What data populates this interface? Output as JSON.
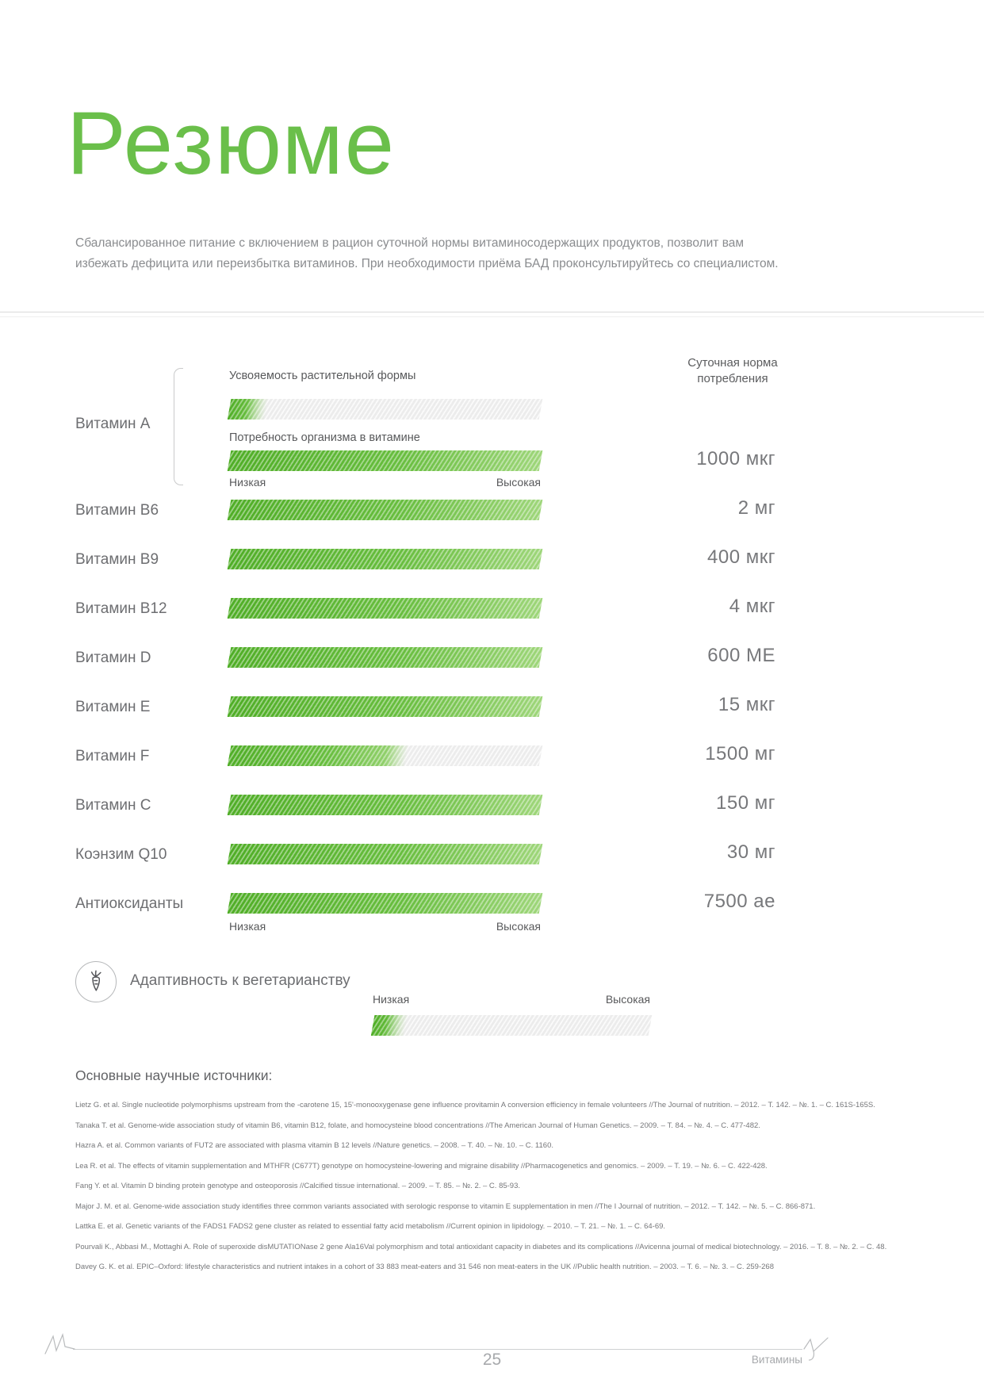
{
  "page": {
    "title": "Резюме",
    "intro": "Сбалансированное питание с включением в рацион суточной нормы витаминосодержащих продуктов, позволит вам избежать дефицита или переизбытка витаминов. При необходимости приёма БАД проконсультируйтесь со специалистом.",
    "footer": {
      "page_number": "25",
      "section_label": "Витамины"
    },
    "colors": {
      "accent_green": "#6abf4a",
      "bar_green_dark": "#50ae27",
      "bar_green_light": "#9ed67a",
      "text_gray": "#6d6e71",
      "muted_gray": "#a7a9ac"
    }
  },
  "chart": {
    "daily_norm_header": "Суточная норма потребления",
    "scale_low": "Низкая",
    "scale_high": "Высокая",
    "vitamin_a": {
      "label": "Витамин A",
      "bar1_label": "Усвояемость растительной формы",
      "bar1_fill_pct": 12,
      "bar2_label": "Потребность организма в витамине",
      "bar2_fill_pct": 100,
      "value": "1000 мкг"
    },
    "rows": [
      {
        "label": "Витамин B6",
        "fill_pct": 100,
        "value": "2 мг"
      },
      {
        "label": "Витамин B9",
        "fill_pct": 100,
        "value": "400 мкг"
      },
      {
        "label": "Витамин B12",
        "fill_pct": 100,
        "value": "4 мкг"
      },
      {
        "label": "Витамин D",
        "fill_pct": 100,
        "value": "600 МЕ"
      },
      {
        "label": "Витамин E",
        "fill_pct": 100,
        "value": "15 мкг"
      },
      {
        "label": "Витамин F",
        "fill_pct": 57,
        "value": "1500 мг"
      },
      {
        "label": "Витамин C",
        "fill_pct": 100,
        "value": "150 мг"
      },
      {
        "label": "Коэнзим Q10",
        "fill_pct": 100,
        "value": "30 мг"
      },
      {
        "label": "Антиоксиданты",
        "fill_pct": 100,
        "value": "7500 ае"
      }
    ]
  },
  "adaptability": {
    "label": "Адаптивность к вегетарианству",
    "icon": "carrot-icon",
    "scale_low": "Низкая",
    "scale_high": "Высокая",
    "fill_pct": 12
  },
  "sources": {
    "heading": "Основные научные источники:",
    "references": [
      "Lietz G. et al. Single nucleotide polymorphisms upstream from the -carotene 15, 15'-monooxygenase gene influence provitamin A conversion efficiency in female volunteers //The Journal of nutrition. – 2012. – Т. 142. – №. 1. – С. 161S-165S.",
      "Tanaka T. et al. Genome-wide association study of vitamin B6, vitamin B12, folate, and homocysteine blood concentrations //The American Journal of Human Genetics. – 2009. – Т. 84. – №. 4. – С. 477-482.",
      "Hazra A. et al. Common variants of FUT2 are associated with plasma vitamin B 12 levels //Nature genetics. – 2008. – Т. 40. – №. 10. – С. 1160.",
      "Lea R. et al. The effects of vitamin supplementation and MTHFR (C677T) genotype on homocysteine-lowering and migraine disability //Pharmacogenetics and genomics. – 2009. – Т. 19. – №. 6. – С. 422-428.",
      "Fang Y. et al. Vitamin D binding protein genotype and osteoporosis //Calcified tissue international. – 2009. – Т. 85. – №. 2. – С. 85-93.",
      "Major J. M. et al. Genome-wide association study identifies three common variants associated with serologic response to vitamin E supplementation in men //The I Journal of nutrition. – 2012. – Т. 142. – №. 5. – С. 866-871.",
      "Lattka E. et al. Genetic variants of the FADS1 FADS2 gene cluster as related to essential fatty acid metabolism //Current opinion in lipidology. – 2010. – Т. 21. – №. 1. – С. 64-69.",
      "Pourvali K., Abbasi M., Mottaghi A. Role of superoxide disMUTATIONase 2 gene Ala16Val polymorphism and total antioxidant capacity in diabetes and its complications //Avicenna journal of medical biotechnology. – 2016. – Т. 8. – №. 2. – С. 48.",
      "Davey G. K. et al. EPIC–Oxford: lifestyle characteristics and nutrient intakes in a cohort of 33 883 meat-eaters and 31 546 non meat-eaters in the UK //Public health nutrition. – 2003. – Т. 6. – №. 3. – С. 259-268"
    ]
  },
  "chart_data": {
    "type": "bar",
    "title": "Потребность организма в витаминах и суточная норма потребления",
    "xlabel": "",
    "ylabel": "",
    "scale_range": [
      "Низкая",
      "Высокая"
    ],
    "series": [
      {
        "name": "Витамин A — усвояемость растительной формы",
        "value_pct": 12
      },
      {
        "name": "Витамин A — потребность организма в витамине",
        "value_pct": 100,
        "daily_norm": "1000 мкг"
      },
      {
        "name": "Витамин B6",
        "value_pct": 100,
        "daily_norm": "2 мг"
      },
      {
        "name": "Витамин B9",
        "value_pct": 100,
        "daily_norm": "400 мкг"
      },
      {
        "name": "Витамин B12",
        "value_pct": 100,
        "daily_norm": "4 мкг"
      },
      {
        "name": "Витамин D",
        "value_pct": 100,
        "daily_norm": "600 МЕ"
      },
      {
        "name": "Витамин E",
        "value_pct": 100,
        "daily_norm": "15 мкг"
      },
      {
        "name": "Витамин F",
        "value_pct": 57,
        "daily_norm": "1500 мг"
      },
      {
        "name": "Витамин C",
        "value_pct": 100,
        "daily_norm": "150 мг"
      },
      {
        "name": "Коэнзим Q10",
        "value_pct": 100,
        "daily_norm": "30 мг"
      },
      {
        "name": "Антиоксиданты",
        "value_pct": 100,
        "daily_norm": "7500 ае"
      },
      {
        "name": "Адаптивность к вегетарианству",
        "value_pct": 12
      }
    ],
    "legend_position": "none",
    "grid": false
  }
}
